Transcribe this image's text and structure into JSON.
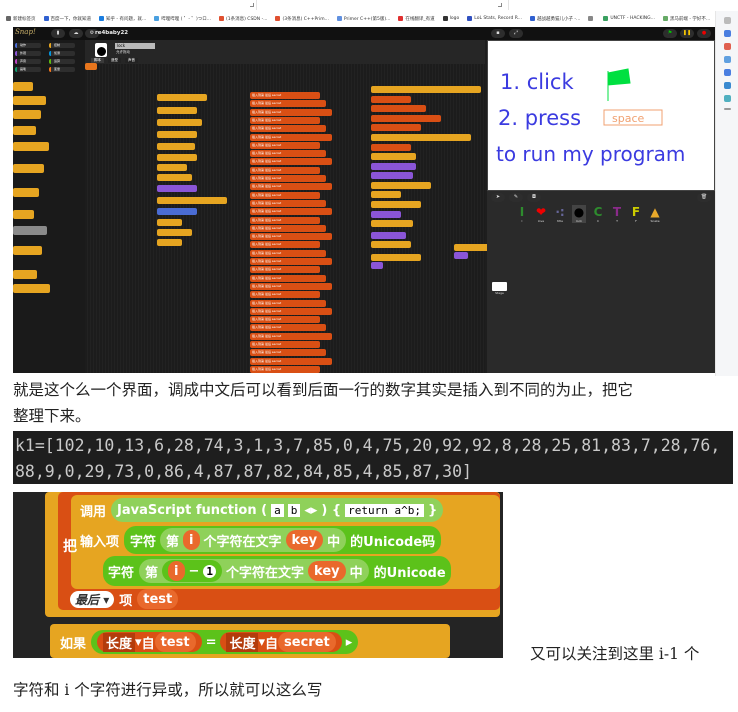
{
  "browser": {
    "bookmarks": [
      "新建标签页",
      "百度一下，你就知道",
      "知乎 - 有问题，就...",
      "哔哩哔哩 ( ゜- ゜)つロ...",
      "(1条消息) CSDN -...",
      "(3条消息) C++Prim...",
      "Primer C++(第5版)...",
      "在线翻译_有道",
      "logo",
      "LoL Stats, Record R...",
      "越战越勇猫儿小子 -...",
      "",
      "UNCTF - HACKING...",
      "黑马前端 - 学好不..."
    ],
    "more_icon": "chevron-right"
  },
  "snap": {
    "logo": "Snap!",
    "project_name": "re4baby22",
    "sprite_name": "lock",
    "draggable_label": "允许拖动",
    "tabs": [
      "脚本",
      "造型",
      "声音"
    ],
    "categories": [
      "动作",
      "外观",
      "声音",
      "画笔",
      "控制",
      "侦测",
      "运算",
      "变量"
    ],
    "block_text": {
      "insert": "插入到第",
      "list": "secret",
      "last": "最后",
      "broadcast": "广播",
      "start_mod": "start_mod"
    },
    "stage_text": [
      "1. click",
      "2. press",
      "to run my program"
    ],
    "space_key": "space",
    "sprites": [
      {
        "label": "I",
        "glyph": "I",
        "color": "#2e8b2e"
      },
      {
        "label": "love",
        "glyph": "❤",
        "color": "#e00"
      },
      {
        "label": "title",
        "glyph": "·:",
        "color": "#669"
      },
      {
        "label": "lock",
        "glyph": "●",
        "color": "#000"
      },
      {
        "label": "C",
        "glyph": "C",
        "color": "#2e8b2e"
      },
      {
        "label": "T",
        "glyph": "T",
        "color": "#8a2a8a"
      },
      {
        "label": "F",
        "glyph": "F",
        "color": "#cc0"
      },
      {
        "label": "Snake",
        "glyph": "▲",
        "color": "#e8a92b"
      }
    ],
    "stage_label": "Stage"
  },
  "article": {
    "para1_line1": "就是这个么一个界面，调成中文后可以看到后面一行的数字其实是插入到不同的为止，把它",
    "para1_line2": "整理下来。",
    "code_line1": "k1=[102,10,13,6,28,74,3,1,3,7,85,0,4,75,20,92,92,8,28,25,81,83,7,28,76,",
    "code_line2": "88,9,0,29,73,0,86,4,87,87,82,84,85,4,85,87,30]",
    "para2_line1": "又可以关注到这里 i-1 个",
    "para2_line2": "字符和 i 个字符进行异或，所以就可以这么写"
  },
  "blocks_image": {
    "call": "调用",
    "js_function": "JavaScript function (",
    "param_a": "a",
    "param_b": "b",
    "brace": ") {",
    "code": "return a^b;",
    "close": "}",
    "put": "把",
    "input": "输入项",
    "char": "字符",
    "nth": "第",
    "i": "i",
    "minus": "−",
    "one": "1",
    "char_in_text": "个字符在文字",
    "key": "key",
    "in": "中",
    "unicode1": "的Unicode码",
    "unicode2": "的Unicode",
    "last": "最后",
    "item": "项",
    "test": "test",
    "if": "如果",
    "length": "长度",
    "of": "自",
    "equals": "=",
    "secret": "secret"
  }
}
